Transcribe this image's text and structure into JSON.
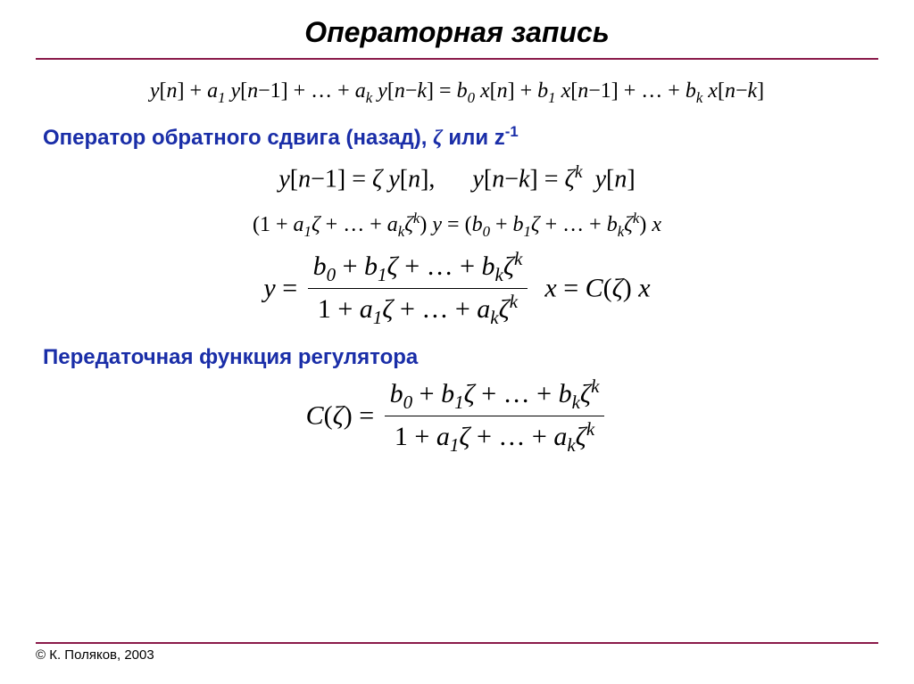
{
  "colors": {
    "hr": "#8a1a4a",
    "label": "#1a2ea8",
    "text": "#000000",
    "background": "#ffffff"
  },
  "title": "Операторная запись",
  "eq1": "y[n] + a₁ y[n−1] + … + aₖ y[n−k] = b₀ x[n] + b₁ x[n−1] + … + bₖ x[n−k]",
  "label1_prefix": "Оператор обратного сдвига (назад), ",
  "label1_sym1": "ζ",
  "label1_mid": " или z",
  "label1_sup": "-1",
  "eq2": "y[n−1] = ζ y[n],    y[n−k] = ζᵏ y[n]",
  "eq3": "(1 + a₁ζ + … + aₖζᵏ) y = (b₀ + b₁ζ + … + bₖζᵏ) x",
  "eq4_lhs": "y = ",
  "eq4_num": "b₀ + b₁ζ + … + bₖζᵏ",
  "eq4_den": "1 + a₁ζ + … + aₖζᵏ",
  "eq4_rhs": " x = C(ζ) x",
  "label2": "Передаточная функция регулятора",
  "eq5_lhs": "C(ζ) = ",
  "eq5_num": "b₀ + b₁ζ + … + bₖζᵏ",
  "eq5_den": "1 + a₁ζ + … + aₖζᵏ",
  "copyright": "© К. Поляков, 2003"
}
